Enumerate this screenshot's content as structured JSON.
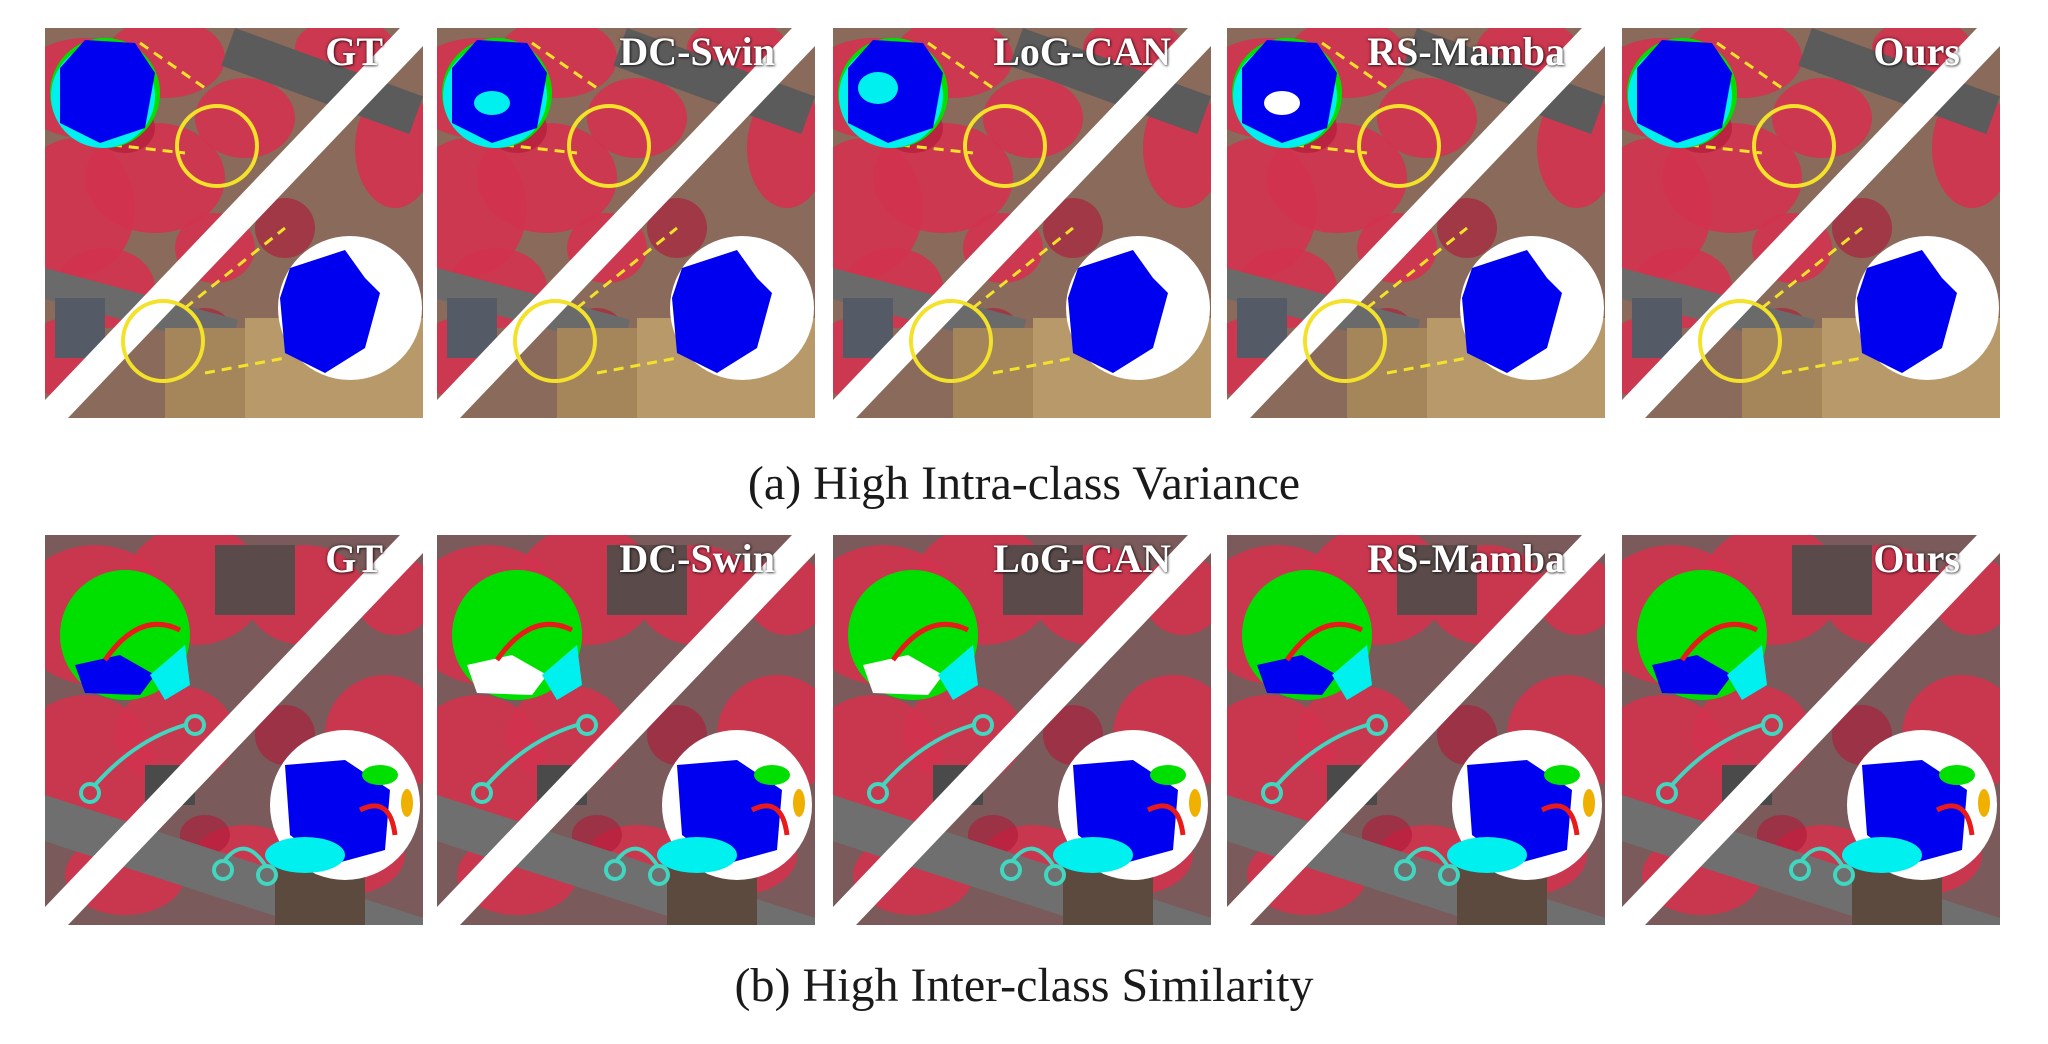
{
  "figure": {
    "methods": [
      "GT",
      "DC-Swin",
      "LoG-CAN",
      "RS-Mamba",
      "Ours"
    ],
    "row_a": {
      "caption": "(a) High Intra-class Variance"
    },
    "row_b": {
      "caption": "(b) High Inter-class Similarity"
    },
    "colors": {
      "vegetation_red": "#d2334e",
      "building_blue": "#0000f0",
      "tree_green": "#00e000",
      "low_veg_cyan": "#00f0f0",
      "impervious_white": "#ffffff",
      "car_yellow": "#f0b000",
      "highlight_circle": "#f3e12a",
      "arrow_red": "#e81a1a",
      "arrow_teal": "#40d6c0"
    }
  }
}
